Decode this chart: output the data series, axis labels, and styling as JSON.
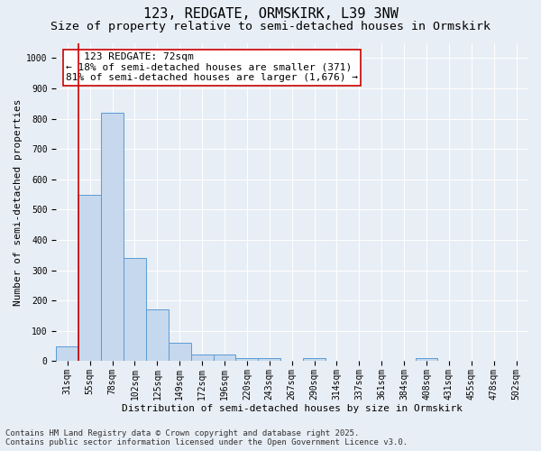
{
  "title_line1": "123, REDGATE, ORMSKIRK, L39 3NW",
  "title_line2": "Size of property relative to semi-detached houses in Ormskirk",
  "xlabel": "Distribution of semi-detached houses by size in Ormskirk",
  "ylabel": "Number of semi-detached properties",
  "bins": [
    "31sqm",
    "55sqm",
    "78sqm",
    "102sqm",
    "125sqm",
    "149sqm",
    "172sqm",
    "196sqm",
    "220sqm",
    "243sqm",
    "267sqm",
    "290sqm",
    "314sqm",
    "337sqm",
    "361sqm",
    "384sqm",
    "408sqm",
    "431sqm",
    "455sqm",
    "478sqm",
    "502sqm"
  ],
  "values": [
    50,
    550,
    820,
    340,
    170,
    60,
    22,
    22,
    10,
    10,
    0,
    10,
    0,
    0,
    0,
    0,
    10,
    0,
    0,
    0,
    0
  ],
  "bar_color": "#c5d8ed",
  "bar_edge_color": "#5b9bd5",
  "red_line_x": 0.5,
  "annotation_text": "   123 REDGATE: 72sqm\n← 18% of semi-detached houses are smaller (371)\n81% of semi-detached houses are larger (1,676) →",
  "red_line_color": "#cc0000",
  "annotation_box_facecolor": "#ffffff",
  "annotation_box_edgecolor": "#cc0000",
  "ylim": [
    0,
    1050
  ],
  "yticks": [
    0,
    100,
    200,
    300,
    400,
    500,
    600,
    700,
    800,
    900,
    1000
  ],
  "footer_line1": "Contains HM Land Registry data © Crown copyright and database right 2025.",
  "footer_line2": "Contains public sector information licensed under the Open Government Licence v3.0.",
  "background_color": "#e8eef5",
  "plot_background_color": "#e8eef5",
  "grid_color": "#ffffff",
  "title_fontsize": 11,
  "subtitle_fontsize": 9.5,
  "axis_label_fontsize": 8,
  "tick_fontsize": 7,
  "annotation_fontsize": 8,
  "footer_fontsize": 6.5
}
